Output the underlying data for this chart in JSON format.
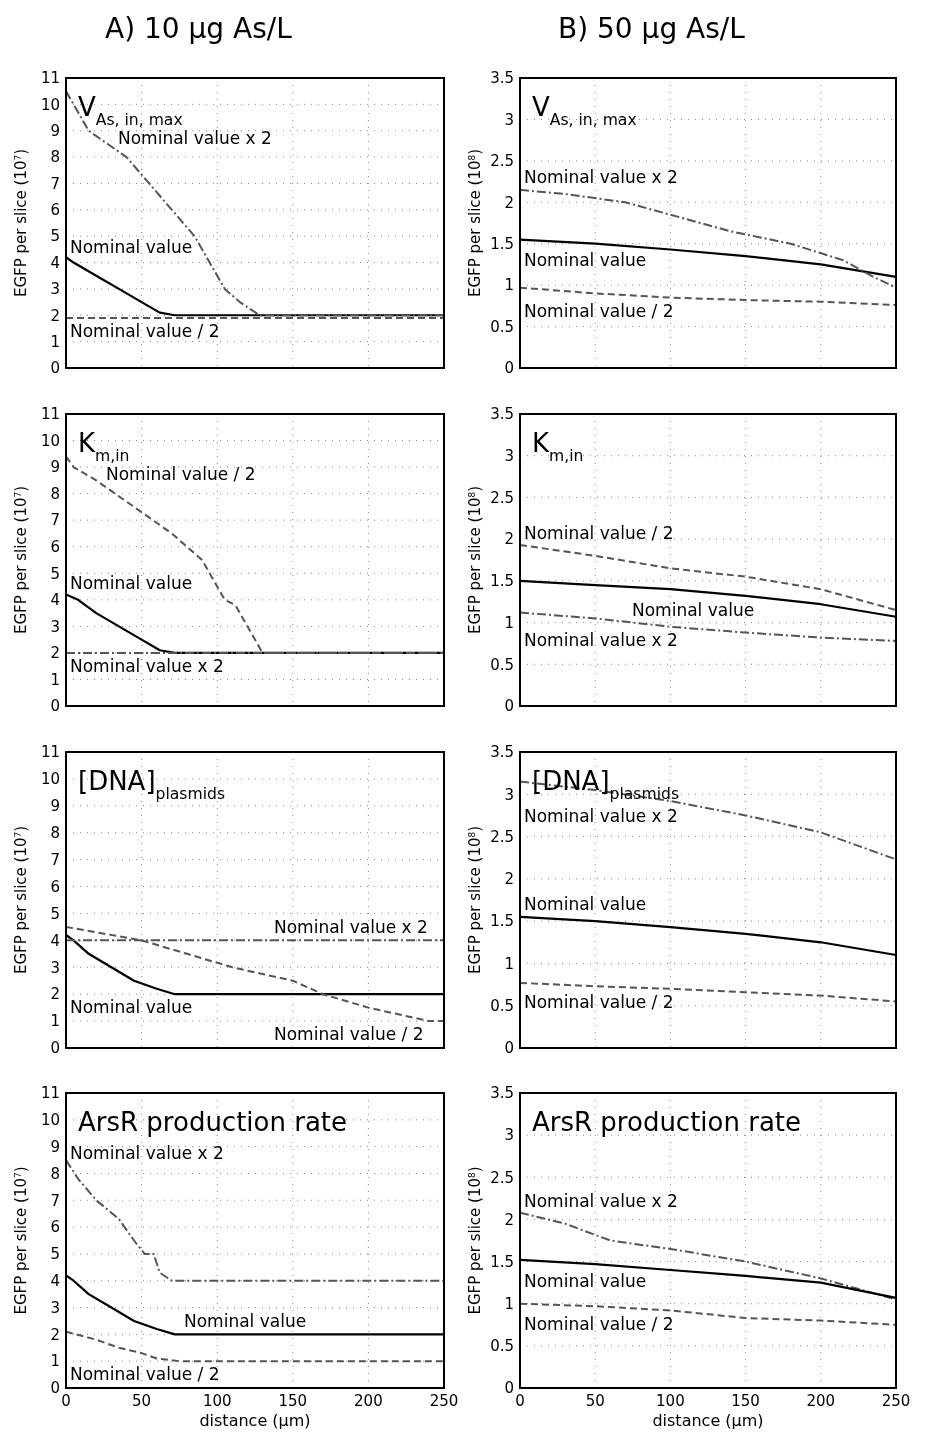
{
  "chart_data": [
    {
      "type": "line",
      "title": "A) 10 µg As/L",
      "subtitle": "V$_{As, in, max}$",
      "ylabel": "EGFP per slice (10$^{7}$)",
      "xlim": [
        0,
        250
      ],
      "ylim": [
        0,
        11
      ],
      "xticks": [
        0,
        50,
        100,
        150,
        200,
        250
      ],
      "yticks": [
        0,
        1,
        2,
        3,
        4,
        5,
        6,
        7,
        8,
        9,
        10,
        11
      ],
      "grid": true,
      "tick_labels": "y",
      "series": [
        {
          "name": "Nominal value",
          "color": "#000000",
          "line_style": "solid",
          "x": [
            0,
            5,
            20,
            35,
            50,
            62,
            72,
            250
          ],
          "values": [
            4.2,
            4,
            3.5,
            3,
            2.5,
            2.1,
            2,
            2
          ]
        },
        {
          "name": "Nominal value x 2",
          "color": "#555555",
          "line_style": "dashdot",
          "x": [
            0,
            15,
            40,
            55,
            70,
            85,
            95,
            105,
            115,
            128,
            250
          ],
          "values": [
            10.5,
            9,
            8,
            7,
            6,
            5,
            4,
            3,
            2.5,
            2,
            2
          ]
        },
        {
          "name": "Nominal value / 2",
          "color": "#555555",
          "line_style": "dashed",
          "x": [
            0,
            250
          ],
          "values": [
            1.9,
            1.9
          ]
        }
      ]
    },
    {
      "type": "line",
      "title": "B) 50 µg As/L",
      "subtitle": "V$_{As, in, max}$",
      "ylabel": "EGFP per slice (10$^{8}$)",
      "xlim": [
        0,
        250
      ],
      "ylim": [
        0,
        3.5
      ],
      "xticks": [
        0,
        50,
        100,
        150,
        200,
        250
      ],
      "yticks": [
        0,
        0.5,
        1,
        1.5,
        2,
        2.5,
        3,
        3.5
      ],
      "grid": true,
      "tick_labels": "y",
      "series": [
        {
          "name": "Nominal value",
          "color": "#000000",
          "line_style": "solid",
          "x": [
            0,
            50,
            100,
            150,
            200,
            250
          ],
          "values": [
            1.55,
            1.5,
            1.43,
            1.35,
            1.25,
            1.1
          ]
        },
        {
          "name": "Nominal value x 2",
          "color": "#555555",
          "line_style": "dashdot",
          "x": [
            0,
            30,
            70,
            100,
            140,
            180,
            215,
            235,
            250
          ],
          "values": [
            2.15,
            2.1,
            2,
            1.85,
            1.65,
            1.5,
            1.3,
            1.1,
            0.97
          ]
        },
        {
          "name": "Nominal value / 2",
          "color": "#555555",
          "line_style": "dashed",
          "x": [
            0,
            50,
            100,
            150,
            200,
            250
          ],
          "values": [
            0.97,
            0.9,
            0.85,
            0.82,
            0.8,
            0.76
          ]
        }
      ]
    },
    {
      "type": "line",
      "subtitle": "K$_{m,in}$",
      "ylabel": "EGFP per slice (10$^{7}$)",
      "xlim": [
        0,
        250
      ],
      "ylim": [
        0,
        11
      ],
      "xticks": [
        0,
        50,
        100,
        150,
        200,
        250
      ],
      "yticks": [
        0,
        1,
        2,
        3,
        4,
        5,
        6,
        7,
        8,
        9,
        10,
        11
      ],
      "grid": true,
      "tick_labels": "y",
      "series": [
        {
          "name": "Nominal value",
          "color": "#000000",
          "line_style": "solid",
          "x": [
            0,
            8,
            20,
            35,
            50,
            62,
            72,
            250
          ],
          "values": [
            4.2,
            4,
            3.5,
            3,
            2.5,
            2.1,
            2,
            2
          ]
        },
        {
          "name": "Nominal value / 2",
          "color": "#555555",
          "line_style": "dashed",
          "x": [
            0,
            5,
            20,
            45,
            70,
            90,
            100,
            105,
            112,
            120,
            130,
            250
          ],
          "values": [
            9.4,
            9,
            8.5,
            7.5,
            6.5,
            5.5,
            4.5,
            4,
            3.8,
            3,
            2,
            2
          ]
        },
        {
          "name": "Nominal value x 2",
          "color": "#555555",
          "line_style": "dashdot",
          "x": [
            0,
            250
          ],
          "values": [
            2,
            2
          ]
        }
      ]
    },
    {
      "type": "line",
      "subtitle": "K$_{m,in}$",
      "ylabel": "EGFP per slice (10$^{8}$)",
      "xlim": [
        0,
        250
      ],
      "ylim": [
        0,
        3.5
      ],
      "xticks": [
        0,
        50,
        100,
        150,
        200,
        250
      ],
      "yticks": [
        0,
        0.5,
        1,
        1.5,
        2,
        2.5,
        3,
        3.5
      ],
      "grid": true,
      "tick_labels": "y",
      "series": [
        {
          "name": "Nominal value",
          "color": "#000000",
          "line_style": "solid",
          "x": [
            0,
            50,
            100,
            150,
            200,
            250
          ],
          "values": [
            1.5,
            1.45,
            1.4,
            1.32,
            1.22,
            1.07
          ]
        },
        {
          "name": "Nominal value / 2",
          "color": "#555555",
          "line_style": "dashed",
          "x": [
            0,
            50,
            100,
            150,
            200,
            250
          ],
          "values": [
            1.93,
            1.8,
            1.65,
            1.55,
            1.4,
            1.15
          ]
        },
        {
          "name": "Nominal value x 2",
          "color": "#555555",
          "line_style": "dashdot",
          "x": [
            0,
            50,
            100,
            150,
            200,
            250
          ],
          "values": [
            1.12,
            1.05,
            0.95,
            0.88,
            0.82,
            0.78
          ]
        }
      ]
    },
    {
      "type": "line",
      "subtitle": "[DNA]$_{plasmids}$",
      "ylabel": "EGFP per slice (10$^{7}$)",
      "xlim": [
        0,
        250
      ],
      "ylim": [
        0,
        11
      ],
      "xticks": [
        0,
        50,
        100,
        150,
        200,
        250
      ],
      "yticks": [
        0,
        1,
        2,
        3,
        4,
        5,
        6,
        7,
        8,
        9,
        10,
        11
      ],
      "grid": true,
      "tick_labels": "y",
      "series": [
        {
          "name": "Nominal value",
          "color": "#000000",
          "line_style": "solid",
          "x": [
            0,
            5,
            15,
            30,
            45,
            60,
            72,
            250
          ],
          "values": [
            4.2,
            4,
            3.5,
            3,
            2.5,
            2.2,
            2,
            2
          ]
        },
        {
          "name": "Nominal value x 2",
          "color": "#555555",
          "line_style": "dashdot",
          "x": [
            0,
            250
          ],
          "values": [
            4,
            4
          ]
        },
        {
          "name": "Nominal value / 2",
          "color": "#555555",
          "line_style": "dashed",
          "x": [
            0,
            20,
            50,
            80,
            110,
            150,
            170,
            200,
            240,
            250
          ],
          "values": [
            4.5,
            4.3,
            4,
            3.5,
            3,
            2.5,
            2,
            1.5,
            1,
            1
          ]
        }
      ]
    },
    {
      "type": "line",
      "subtitle": "[DNA]$_{plasmids}$",
      "ylabel": "EGFP per slice (10$^{8}$)",
      "xlim": [
        0,
        250
      ],
      "ylim": [
        0,
        3.5
      ],
      "xticks": [
        0,
        50,
        100,
        150,
        200,
        250
      ],
      "yticks": [
        0,
        0.5,
        1,
        1.5,
        2,
        2.5,
        3,
        3.5
      ],
      "grid": true,
      "tick_labels": "y",
      "series": [
        {
          "name": "Nominal value x 2",
          "color": "#555555",
          "line_style": "dashdot",
          "x": [
            0,
            50,
            100,
            150,
            200,
            250
          ],
          "values": [
            3.15,
            3.05,
            2.92,
            2.75,
            2.55,
            2.23
          ]
        },
        {
          "name": "Nominal value",
          "color": "#000000",
          "line_style": "solid",
          "x": [
            0,
            50,
            100,
            150,
            200,
            250
          ],
          "values": [
            1.55,
            1.5,
            1.43,
            1.35,
            1.25,
            1.1
          ]
        },
        {
          "name": "Nominal value / 2",
          "color": "#555555",
          "line_style": "dashed",
          "x": [
            0,
            50,
            100,
            150,
            200,
            250
          ],
          "values": [
            0.77,
            0.73,
            0.7,
            0.66,
            0.62,
            0.55
          ]
        }
      ]
    },
    {
      "type": "line",
      "subtitle": "ArsR production rate",
      "xlabel": "distance (µm)",
      "ylabel": "EGFP per slice (10$^{7}$)",
      "xlim": [
        0,
        250
      ],
      "ylim": [
        0,
        11
      ],
      "xticks": [
        0,
        50,
        100,
        150,
        200,
        250
      ],
      "yticks": [
        0,
        1,
        2,
        3,
        4,
        5,
        6,
        7,
        8,
        9,
        10,
        11
      ],
      "grid": true,
      "series": [
        {
          "name": "Nominal value x 2",
          "color": "#555555",
          "line_style": "dashdot",
          "x": [
            0,
            8,
            20,
            35,
            45,
            52,
            58,
            62,
            70,
            250
          ],
          "values": [
            8.5,
            7.8,
            7,
            6.3,
            5.5,
            5,
            5,
            4.3,
            4,
            4
          ]
        },
        {
          "name": "Nominal value",
          "color": "#000000",
          "line_style": "solid",
          "x": [
            0,
            5,
            15,
            30,
            45,
            60,
            72,
            250
          ],
          "values": [
            4.2,
            4,
            3.5,
            3,
            2.5,
            2.2,
            2,
            2
          ]
        },
        {
          "name": "Nominal value / 2",
          "color": "#555555",
          "line_style": "dashed",
          "x": [
            0,
            20,
            35,
            50,
            60,
            75,
            250
          ],
          "values": [
            2.1,
            1.8,
            1.5,
            1.3,
            1.1,
            1,
            1
          ]
        }
      ]
    },
    {
      "type": "line",
      "subtitle": "ArsR production rate",
      "xlabel": "distance (µm)",
      "ylabel": "EGFP per slice (10$^{8}$)",
      "xlim": [
        0,
        250
      ],
      "ylim": [
        0,
        3.5
      ],
      "xticks": [
        0,
        50,
        100,
        150,
        200,
        250
      ],
      "yticks": [
        0,
        0.5,
        1,
        1.5,
        2,
        2.5,
        3,
        3.5
      ],
      "grid": true,
      "series": [
        {
          "name": "Nominal value x 2",
          "color": "#555555",
          "line_style": "dashdot",
          "x": [
            0,
            30,
            60,
            100,
            150,
            200,
            250
          ],
          "values": [
            2.08,
            1.95,
            1.75,
            1.65,
            1.5,
            1.3,
            1.05
          ]
        },
        {
          "name": "Nominal value",
          "color": "#000000",
          "line_style": "solid",
          "x": [
            0,
            50,
            100,
            150,
            200,
            250
          ],
          "values": [
            1.52,
            1.47,
            1.4,
            1.33,
            1.25,
            1.07
          ]
        },
        {
          "name": "Nominal value / 2",
          "color": "#555555",
          "line_style": "dashed",
          "x": [
            0,
            50,
            100,
            150,
            200,
            250
          ],
          "values": [
            1,
            0.97,
            0.92,
            0.83,
            0.8,
            0.75
          ]
        }
      ]
    }
  ]
}
